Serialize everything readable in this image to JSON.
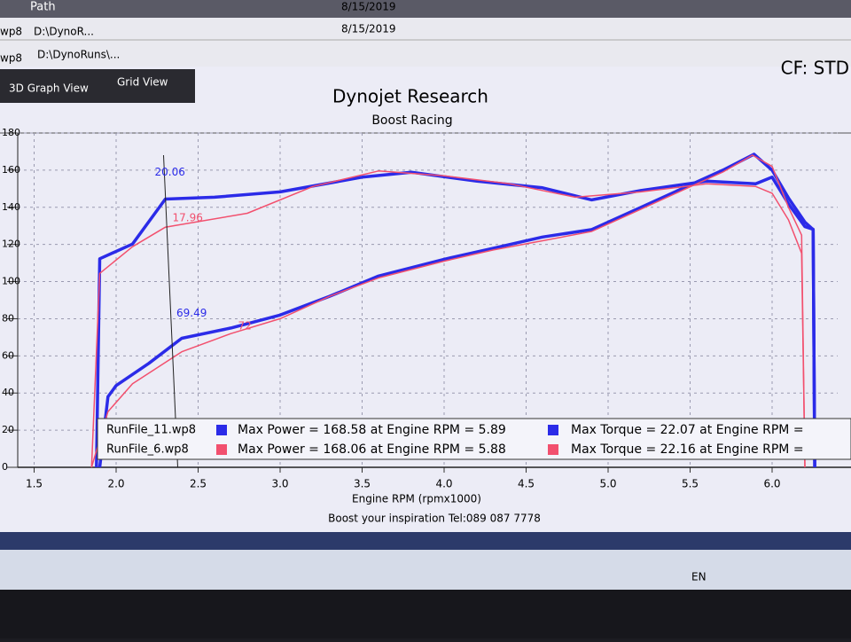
{
  "window": {
    "path_header": "Path",
    "rows": [
      {
        "file": "wp8",
        "path": "D:\\DynoR...",
        "date": "8/15/2019"
      },
      {
        "file": "wp8",
        "path": "D:\\DynoRuns\\...",
        "date": "8/15/2019"
      }
    ],
    "tabs": [
      "3D Graph View",
      "Grid View"
    ],
    "cf": "CF: STD",
    "footer": "Boost your inspiration Tel:089 087 7778",
    "tray": "EN"
  },
  "chart_data": {
    "type": "line",
    "title": "Dynojet Research",
    "subtitle": "Boost Racing",
    "x_label": "Engine RPM (rpmx1000)",
    "xlim": [
      1.4,
      6.4
    ],
    "xticks": [
      1.5,
      {
        "value": 2,
        "label": "2.0"
      },
      2.5,
      {
        "value": 3,
        "label": "3.0"
      },
      3.5,
      {
        "value": 4,
        "label": "4.0"
      },
      4.5,
      {
        "value": 5,
        "label": "5.0"
      },
      5.5,
      {
        "value": 6,
        "label": "6.0"
      }
    ],
    "ylim": [
      0,
      180
    ],
    "yticks": [
      0,
      20,
      40,
      60,
      80,
      100,
      120,
      140,
      160,
      180
    ],
    "y2lim": [
      0,
      25
    ],
    "grid": true,
    "series": [
      {
        "name": "RunFile_11.wp8",
        "color": "#2b2be8",
        "width": 3.5,
        "power": {
          "x": [
            1.9,
            1.95,
            2.0,
            2.2,
            2.4,
            2.7,
            3.0,
            3.3,
            3.6,
            4.0,
            4.3,
            4.6,
            4.9,
            5.2,
            5.5,
            5.7,
            5.89,
            6.0,
            6.1,
            6.2,
            6.25,
            6.26
          ],
          "values": [
            0,
            38,
            44,
            56,
            69.49,
            75,
            82,
            92,
            103,
            112,
            118,
            124,
            128,
            140,
            152,
            160,
            168.58,
            160,
            145,
            132,
            128,
            0
          ]
        },
        "torque": {
          "x": [
            1.88,
            1.9,
            2.1,
            2.3,
            2.6,
            3.0,
            3.5,
            3.8,
            4.2,
            4.6,
            4.9,
            5.2,
            5.6,
            5.9,
            6.0,
            6.1,
            6.2,
            6.25,
            6.26
          ],
          "values": [
            0,
            15.6,
            16.7,
            20.06,
            20.2,
            20.6,
            21.7,
            22.07,
            21.4,
            20.9,
            20.0,
            20.7,
            21.4,
            21.2,
            21.7,
            19.7,
            18.0,
            17.8,
            0
          ]
        },
        "max_power": "Max Power = 168.58 at Engine RPM = 5.89",
        "max_torque": "Max Torque = 22.07 at Engine RPM ="
      },
      {
        "name": "RunFile_6.wp8",
        "color": "#f2506e",
        "width": 1.5,
        "power": {
          "x": [
            1.85,
            1.95,
            2.1,
            2.4,
            2.7,
            3.0,
            3.3,
            3.6,
            4.0,
            4.3,
            4.6,
            4.9,
            5.2,
            5.5,
            5.7,
            5.88,
            6.0,
            6.1,
            6.18,
            6.2
          ],
          "values": [
            0,
            30,
            45,
            62.22,
            72,
            80,
            92,
            102,
            111,
            117,
            122,
            127,
            139,
            151,
            159,
            168.06,
            162,
            140,
            125,
            0
          ]
        },
        "torque": {
          "x": [
            1.85,
            1.9,
            2.1,
            2.3,
            2.8,
            3.2,
            3.6,
            4.0,
            4.4,
            4.8,
            5.2,
            5.6,
            5.9,
            6.0,
            6.1,
            6.18,
            6.2
          ],
          "values": [
            0,
            14.5,
            16.5,
            17.96,
            19.0,
            21.0,
            22.16,
            21.8,
            21.2,
            20.2,
            20.6,
            21.2,
            21.0,
            20.5,
            18.5,
            16.0,
            0
          ]
        },
        "max_power": "Max Power = 168.06 at Engine RPM = 5.88",
        "max_torque": "Max Torque = 22.16 at Engine RPM ="
      }
    ]
  }
}
